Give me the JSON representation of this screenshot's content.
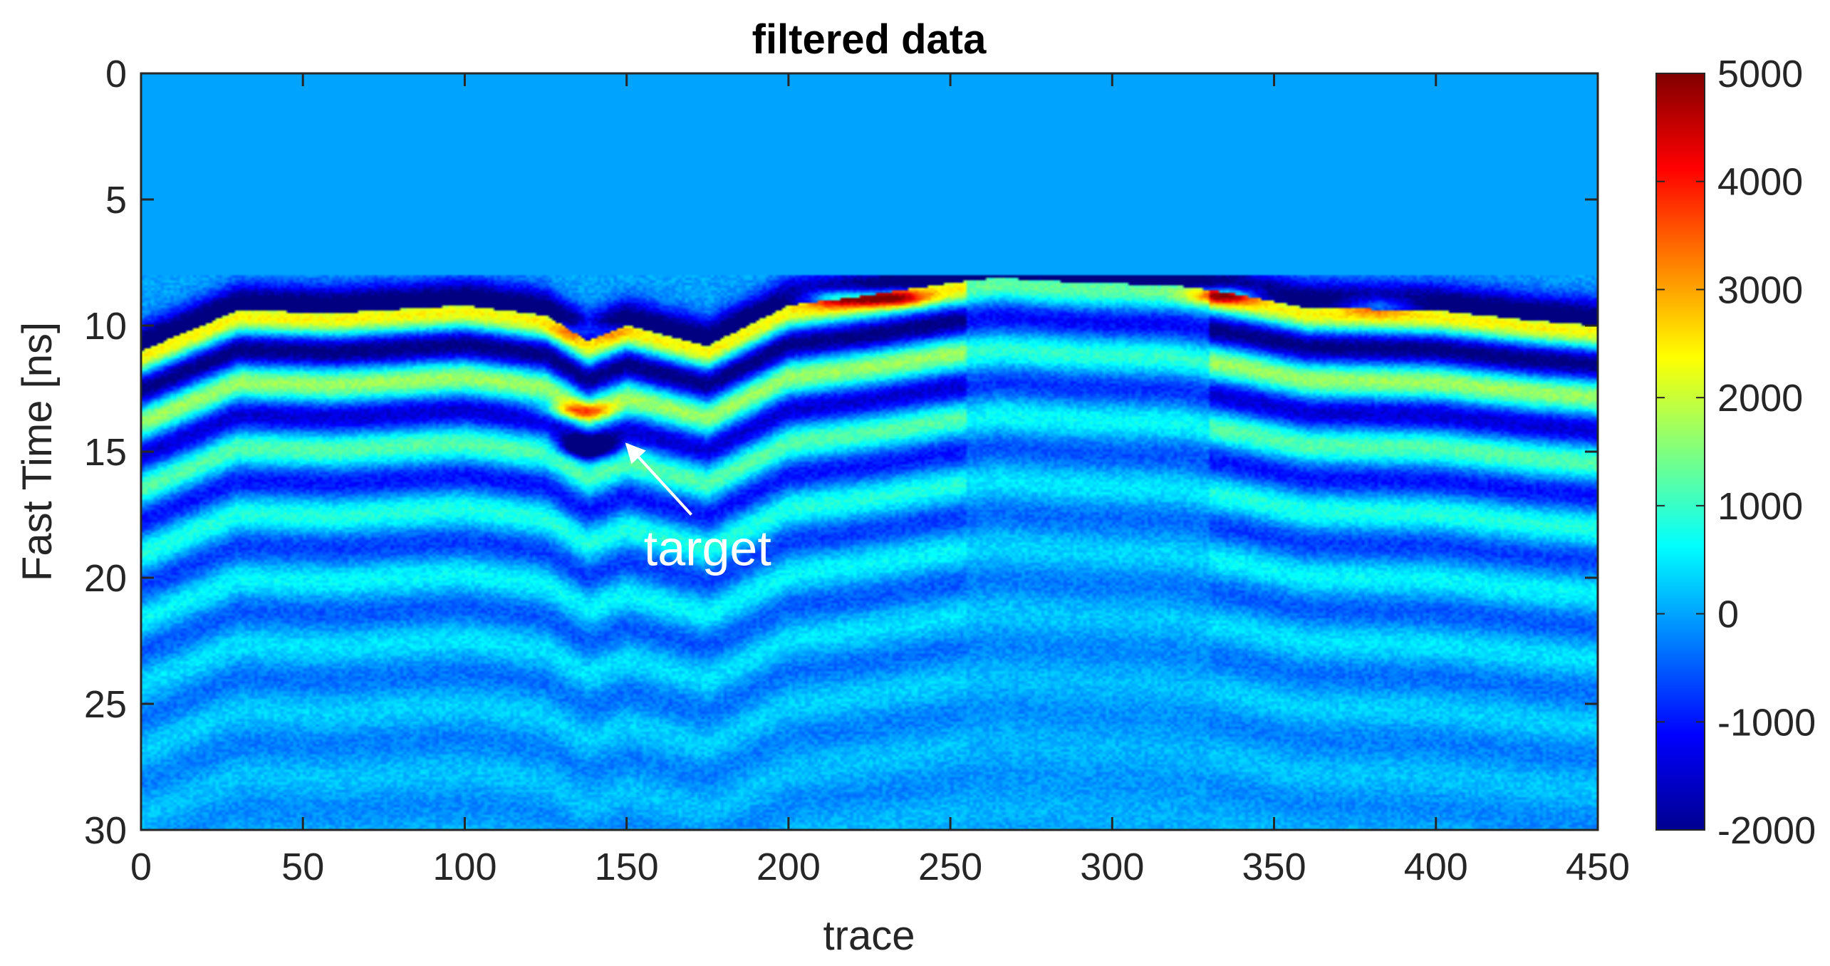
{
  "chart_data": {
    "type": "heatmap",
    "title": "filtered data",
    "xlabel": "trace",
    "ylabel": "Fast Time [ns]",
    "xlim": [
      0,
      450
    ],
    "ylim": [
      0,
      30
    ],
    "y_direction": "reverse",
    "xticks": [
      0,
      50,
      100,
      150,
      200,
      250,
      300,
      350,
      400,
      450
    ],
    "yticks": [
      0,
      5,
      10,
      15,
      20,
      25,
      30
    ],
    "colormap": "jet",
    "clim": [
      -2000,
      5000
    ],
    "colorbar_ticks": [
      5000,
      4000,
      3000,
      2000,
      1000,
      0,
      -1000,
      -2000
    ],
    "muted_region": {
      "t_start": 0,
      "t_end": 8,
      "value": 0
    },
    "surface_reflection_ns": [
      [
        0,
        11.0
      ],
      [
        30,
        9.4
      ],
      [
        60,
        9.5
      ],
      [
        100,
        9.2
      ],
      [
        125,
        9.6
      ],
      [
        138,
        10.6
      ],
      [
        150,
        10.0
      ],
      [
        175,
        10.8
      ],
      [
        200,
        9.2
      ],
      [
        225,
        8.8
      ],
      [
        250,
        8.3
      ],
      [
        265,
        8.1
      ],
      [
        290,
        8.3
      ],
      [
        320,
        8.4
      ],
      [
        340,
        8.8
      ],
      [
        360,
        9.3
      ],
      [
        400,
        9.4
      ],
      [
        430,
        9.8
      ],
      [
        450,
        10.0
      ]
    ],
    "strong_reflections": [
      {
        "trace": 215,
        "time_ns": 8.9,
        "amplitude": 4500
      },
      {
        "trace": 232,
        "time_ns": 8.9,
        "amplitude": 4200
      },
      {
        "trace": 335,
        "time_ns": 8.8,
        "amplitude": 4500
      },
      {
        "trace": 382,
        "time_ns": 9.2,
        "amplitude": 3000
      },
      {
        "trace": 135,
        "time_ns": 13.4,
        "amplitude": 3600
      },
      {
        "trace": 138,
        "time_ns": 10.2,
        "amplitude": 2500
      }
    ],
    "annotations": [
      {
        "text": "target",
        "text_trace": 175,
        "text_time_ns": 19.5,
        "arrow_from": [
          170,
          17.5
        ],
        "arrow_to": [
          150,
          14.7
        ]
      }
    ]
  }
}
